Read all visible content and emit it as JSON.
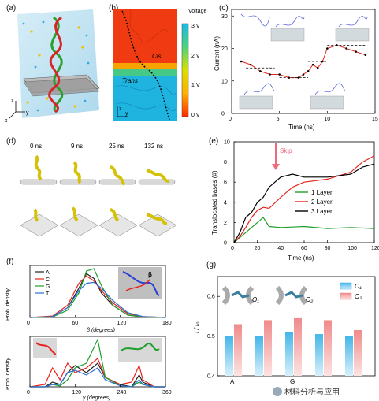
{
  "panels": {
    "a": {
      "label": "(a)"
    },
    "b": {
      "label": "(b)",
      "colorbar_title": "Voltage",
      "colorbar_ticks": [
        "3 V",
        "2 V",
        "1 V",
        "0 V"
      ],
      "region_cis": "Cis",
      "region_trans": "Trans",
      "axis_z": "z",
      "axis_y": "y"
    },
    "c": {
      "label": "(c)",
      "ylabel": "Current (nA)",
      "xlabel": "Time (ns)",
      "xticks": [
        "0",
        "5",
        "10",
        "15"
      ],
      "yticks": [
        "0",
        "10",
        "20",
        "30"
      ]
    },
    "d": {
      "label": "(d)",
      "times": [
        "0 ns",
        "9 ns",
        "25 ns",
        "132 ns"
      ]
    },
    "e": {
      "label": "(e)",
      "ylabel": "Translocated bases (#)",
      "xlabel": "Time (ns)",
      "annotation": "Skip",
      "legend": [
        "1 Layer",
        "2 Layer",
        "3 Layer"
      ],
      "xticks": [
        "0",
        "20",
        "40",
        "60",
        "80",
        "100",
        "120"
      ],
      "yticks": [
        "0",
        "2",
        "4",
        "6",
        "8",
        "10"
      ]
    },
    "f": {
      "label": "(f)",
      "ylabel_top": "Prob. density",
      "ylabel_bottom": "Prob. density",
      "xlabel_top": "β (degrees)",
      "xlabel_bottom": "γ (degrees)",
      "xticks_top": [
        "0",
        "60",
        "120",
        "180"
      ],
      "xticks_bottom": [
        "0",
        "120",
        "240",
        "360"
      ],
      "legend": [
        "A",
        "C",
        "G",
        "T"
      ],
      "inset_symbol": "β"
    },
    "g": {
      "label": "(g)",
      "ylabel": "I / I₀",
      "yticks": [
        "0.4",
        "0.5",
        "0.6"
      ],
      "xticks": [
        "A",
        "G"
      ],
      "legend": [
        "O₁",
        "O₂"
      ],
      "o1": "O₁",
      "o2": "O₂",
      "inset_beta": "β"
    }
  },
  "colors": {
    "ds1": "#1e9e2a",
    "ds2": "#e8231c",
    "ds3": "#000000",
    "A": "#222222",
    "C": "#e8231c",
    "G": "#1e9e2a",
    "T": "#2c6fd6",
    "bar1": "#43b6e8",
    "bar2": "#f08a8a"
  },
  "chart_data": [
    {
      "type": "line",
      "panel": "c",
      "xlabel": "Time (ns)",
      "ylabel": "Current (nA)",
      "xlim": [
        0,
        15
      ],
      "ylim": [
        0,
        32
      ],
      "series": [
        {
          "values_x": [
            1,
            2,
            3,
            4,
            5,
            6,
            7,
            7.5,
            8,
            8.5,
            9,
            9.5,
            10,
            11,
            12,
            13,
            14
          ],
          "values_y": [
            16,
            15,
            13,
            12,
            12,
            11,
            11,
            12,
            13,
            15,
            14,
            16,
            20,
            21,
            20,
            19,
            18
          ],
          "color": "#e8231c"
        }
      ],
      "levels": [
        {
          "x": [
            1.5,
            4.5
          ],
          "y": 14
        },
        {
          "x": [
            5,
            8
          ],
          "y": 11
        },
        {
          "x": [
            8,
            10
          ],
          "y": 16
        },
        {
          "x": [
            10,
            14
          ],
          "y": 21
        }
      ]
    },
    {
      "type": "line",
      "panel": "e",
      "xlabel": "Time (ns)",
      "ylabel": "Translocated bases (#)",
      "xlim": [
        0,
        120
      ],
      "ylim": [
        0,
        10
      ],
      "series": [
        {
          "name": "1 Layer",
          "x": [
            0,
            5,
            10,
            15,
            20,
            25,
            30,
            40,
            60,
            80,
            100,
            120
          ],
          "values": [
            0,
            0.5,
            1,
            1.5,
            2,
            2.5,
            1.6,
            1.5,
            1.6,
            1.4,
            1.5,
            1.4
          ]
        },
        {
          "name": "2 Layer",
          "x": [
            0,
            5,
            10,
            15,
            20,
            25,
            30,
            40,
            50,
            60,
            80,
            100,
            110,
            120
          ],
          "values": [
            0,
            0.6,
            1.5,
            2.5,
            3.2,
            3.5,
            3.4,
            4.5,
            5.5,
            6,
            6.3,
            7,
            8,
            8.6
          ]
        },
        {
          "name": "3 Layer",
          "x": [
            0,
            5,
            10,
            15,
            20,
            25,
            30,
            40,
            50,
            60,
            80,
            100,
            110,
            120
          ],
          "values": [
            0,
            1,
            2.5,
            3,
            4,
            4.5,
            5.5,
            6.5,
            6.8,
            6.5,
            6.5,
            6.8,
            7.5,
            7.8
          ]
        }
      ]
    },
    {
      "type": "line",
      "panel": "f-top",
      "xlabel": "β (degrees)",
      "ylabel": "Prob. density",
      "xlim": [
        0,
        180
      ],
      "series": [
        {
          "name": "A",
          "x": [
            0,
            30,
            50,
            65,
            75,
            85,
            95,
            110,
            130,
            150,
            180
          ],
          "values": [
            0,
            0.02,
            0.2,
            0.6,
            0.9,
            0.8,
            0.5,
            0.25,
            0.05,
            0.01,
            0
          ]
        },
        {
          "name": "C",
          "x": [
            0,
            30,
            50,
            65,
            75,
            85,
            95,
            110,
            130,
            150,
            180
          ],
          "values": [
            0,
            0.03,
            0.25,
            0.7,
            0.85,
            0.75,
            0.55,
            0.3,
            0.08,
            0.02,
            0
          ]
        },
        {
          "name": "G",
          "x": [
            0,
            30,
            50,
            65,
            75,
            85,
            95,
            110,
            130,
            150,
            180
          ],
          "values": [
            0,
            0.01,
            0.15,
            0.5,
            0.95,
            1.0,
            0.65,
            0.25,
            0.05,
            0.01,
            0
          ]
        },
        {
          "name": "T",
          "x": [
            0,
            30,
            50,
            65,
            75,
            85,
            95,
            110,
            130,
            150,
            180
          ],
          "values": [
            0,
            0.02,
            0.2,
            0.55,
            0.7,
            0.72,
            0.6,
            0.35,
            0.1,
            0.02,
            0
          ]
        }
      ]
    },
    {
      "type": "line",
      "panel": "f-bottom",
      "xlabel": "γ (degrees)",
      "ylabel": "Prob. density",
      "xlim": [
        0,
        360
      ],
      "series": [
        {
          "name": "A",
          "x": [
            0,
            40,
            60,
            80,
            100,
            120,
            150,
            180,
            200,
            240,
            270,
            290,
            300,
            330,
            360
          ],
          "values": [
            0,
            0,
            0.1,
            0.05,
            0.3,
            0.45,
            0.3,
            0.5,
            0.2,
            0.05,
            0,
            0.25,
            0.1,
            0,
            0
          ]
        },
        {
          "name": "C",
          "x": [
            0,
            40,
            60,
            80,
            100,
            120,
            150,
            180,
            200,
            240,
            270,
            290,
            300,
            330,
            360
          ],
          "values": [
            0,
            0.05,
            0.4,
            0.15,
            0.5,
            0.3,
            0.4,
            0.6,
            0.2,
            0.05,
            0.1,
            0.45,
            0.15,
            0,
            0
          ]
        },
        {
          "name": "G",
          "x": [
            0,
            40,
            60,
            80,
            100,
            120,
            150,
            180,
            200,
            240,
            270,
            290,
            300,
            330,
            360
          ],
          "values": [
            0,
            0,
            0.05,
            0.02,
            0.15,
            0.4,
            0.5,
            1.0,
            0.2,
            0.02,
            0,
            0.1,
            0.05,
            0,
            0
          ]
        },
        {
          "name": "T",
          "x": [
            0,
            40,
            60,
            80,
            100,
            120,
            150,
            180,
            200,
            240,
            270,
            290,
            300,
            330,
            360
          ],
          "values": [
            0,
            0,
            0.05,
            0.05,
            0.3,
            0.35,
            0.25,
            0.4,
            0.15,
            0.02,
            0,
            0.15,
            0.05,
            0,
            0
          ]
        }
      ]
    },
    {
      "type": "bar",
      "panel": "g",
      "ylabel": "I / I₀",
      "ylim": [
        0.4,
        0.65
      ],
      "categories": [
        "A",
        "",
        "G",
        "",
        ""
      ],
      "series": [
        {
          "name": "O₁",
          "values": [
            0.5,
            0.5,
            0.51,
            0.505,
            0.5
          ]
        },
        {
          "name": "O₂",
          "values": [
            0.53,
            0.54,
            0.545,
            0.54,
            0.515
          ]
        }
      ]
    }
  ],
  "watermark": "材料分析与应用"
}
